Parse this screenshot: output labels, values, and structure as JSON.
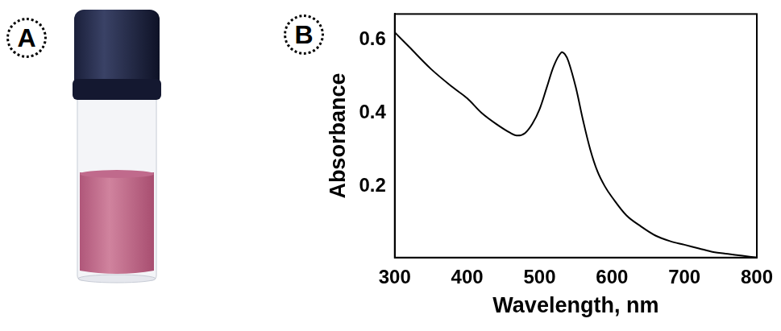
{
  "panel_labels": [
    "A",
    "B"
  ],
  "chart_data": {
    "type": "line",
    "x_label": "Wavelength, nm",
    "y_label": "Absorbance",
    "color": "#000000",
    "x": [
      300,
      320,
      350,
      380,
      400,
      420,
      440,
      460,
      470,
      480,
      490,
      500,
      510,
      520,
      530,
      535,
      540,
      550,
      560,
      570,
      580,
      590,
      600,
      620,
      640,
      660,
      680,
      700,
      720,
      740,
      760,
      780,
      800
    ],
    "values": [
      0.62,
      0.58,
      0.52,
      0.47,
      0.44,
      0.4,
      0.37,
      0.345,
      0.338,
      0.345,
      0.37,
      0.41,
      0.47,
      0.53,
      0.565,
      0.56,
      0.54,
      0.47,
      0.38,
      0.3,
      0.24,
      0.2,
      0.17,
      0.12,
      0.09,
      0.065,
      0.05,
      0.04,
      0.03,
      0.02,
      0.015,
      0.01,
      0.005
    ],
    "xlim": [
      300,
      800
    ],
    "xticks": [
      300,
      400,
      500,
      600,
      700,
      800
    ],
    "ylim": [
      0.005,
      0.67
    ],
    "yticks": [
      0.2,
      0.4,
      0.6
    ],
    "grid": false
  }
}
